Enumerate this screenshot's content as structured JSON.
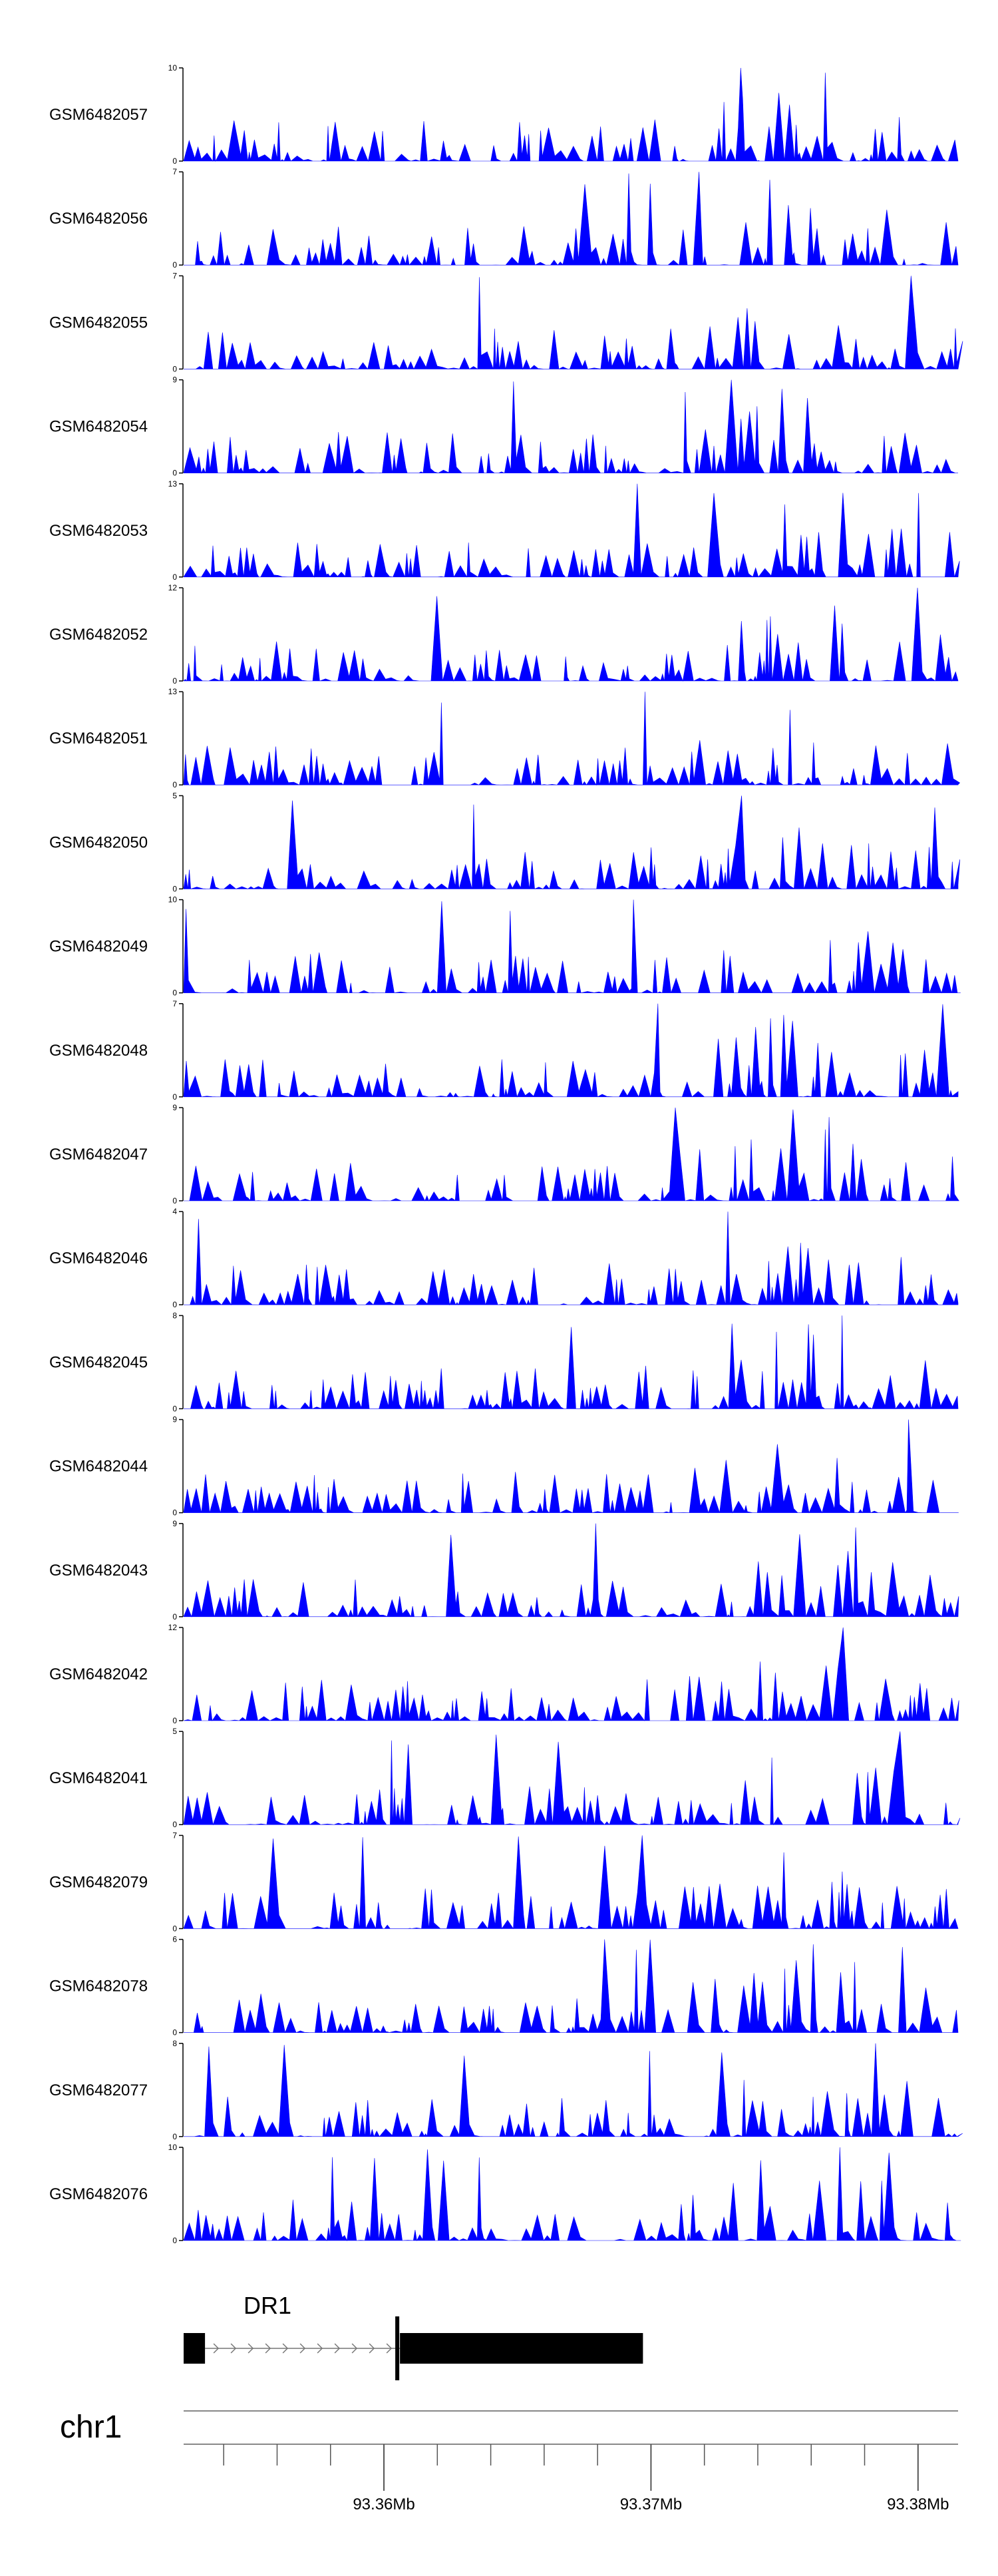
{
  "chart_data": {
    "type": "area",
    "colors": {
      "signal": "#0000ff",
      "axis": "#000000",
      "gene": "#000000",
      "ruler": "#000000"
    },
    "x_range": [
      93.3525,
      93.3815
    ],
    "x_unit": "Mb",
    "tracks": [
      {
        "name": "GSM6482057",
        "ylim": [
          0,
          10
        ],
        "y_ticks": [
          "10",
          "0"
        ],
        "peak": 10
      },
      {
        "name": "GSM6482056",
        "ylim": [
          0,
          7
        ],
        "y_ticks": [
          "7",
          "0"
        ],
        "peak": 7
      },
      {
        "name": "GSM6482055",
        "ylim": [
          0,
          7
        ],
        "y_ticks": [
          "7",
          "0"
        ],
        "peak": 7
      },
      {
        "name": "GSM6482054",
        "ylim": [
          0,
          9
        ],
        "y_ticks": [
          "9",
          "0"
        ],
        "peak": 9
      },
      {
        "name": "GSM6482053",
        "ylim": [
          0,
          13
        ],
        "y_ticks": [
          "13",
          "0"
        ],
        "peak": 13
      },
      {
        "name": "GSM6482052",
        "ylim": [
          0,
          12
        ],
        "y_ticks": [
          "12",
          "0"
        ],
        "peak": 12
      },
      {
        "name": "GSM6482051",
        "ylim": [
          0,
          13
        ],
        "y_ticks": [
          "13",
          "0"
        ],
        "peak": 13
      },
      {
        "name": "GSM6482050",
        "ylim": [
          0,
          5
        ],
        "y_ticks": [
          "5",
          "0"
        ],
        "peak": 5
      },
      {
        "name": "GSM6482049",
        "ylim": [
          0,
          10
        ],
        "y_ticks": [
          "10",
          "0"
        ],
        "peak": 10
      },
      {
        "name": "GSM6482048",
        "ylim": [
          0,
          7
        ],
        "y_ticks": [
          "7",
          "0"
        ],
        "peak": 7
      },
      {
        "name": "GSM6482047",
        "ylim": [
          0,
          9
        ],
        "y_ticks": [
          "9",
          "0"
        ],
        "peak": 9
      },
      {
        "name": "GSM6482046",
        "ylim": [
          0,
          4
        ],
        "y_ticks": [
          "4",
          "0"
        ],
        "peak": 4
      },
      {
        "name": "GSM6482045",
        "ylim": [
          0,
          8
        ],
        "y_ticks": [
          "8",
          "0"
        ],
        "peak": 8
      },
      {
        "name": "GSM6482044",
        "ylim": [
          0,
          9
        ],
        "y_ticks": [
          "9",
          "0"
        ],
        "peak": 9
      },
      {
        "name": "GSM6482043",
        "ylim": [
          0,
          9
        ],
        "y_ticks": [
          "9",
          "0"
        ],
        "peak": 9
      },
      {
        "name": "GSM6482042",
        "ylim": [
          0,
          12
        ],
        "y_ticks": [
          "12",
          "0"
        ],
        "peak": 12
      },
      {
        "name": "GSM6482041",
        "ylim": [
          0,
          5
        ],
        "y_ticks": [
          "5",
          "0"
        ],
        "peak": 5
      },
      {
        "name": "GSM6482079",
        "ylim": [
          0,
          7
        ],
        "y_ticks": [
          "7",
          "0"
        ],
        "peak": 7
      },
      {
        "name": "GSM6482078",
        "ylim": [
          0,
          6
        ],
        "y_ticks": [
          "6",
          "0"
        ],
        "peak": 6
      },
      {
        "name": "GSM6482077",
        "ylim": [
          0,
          8
        ],
        "y_ticks": [
          "8",
          "0"
        ],
        "peak": 8
      },
      {
        "name": "GSM6482076",
        "ylim": [
          0,
          10
        ],
        "y_ticks": [
          "10",
          "0"
        ],
        "peak": 10
      }
    ],
    "gene": {
      "name": "DR1",
      "strand": "+",
      "start": 93.3525,
      "end": 93.3697,
      "exons": [
        {
          "start": 93.3525,
          "end": 93.3533
        },
        {
          "start": 93.3606,
          "end": 93.3697
        }
      ],
      "tss_marker": 93.3605
    },
    "ideogram": {
      "chromosome": "chr1",
      "tick_labels": [
        "93.36Mb",
        "93.37Mb",
        "93.38Mb"
      ],
      "tick_values": [
        93.36,
        93.37,
        93.38
      ],
      "minor_tick_step": 0.002
    }
  }
}
